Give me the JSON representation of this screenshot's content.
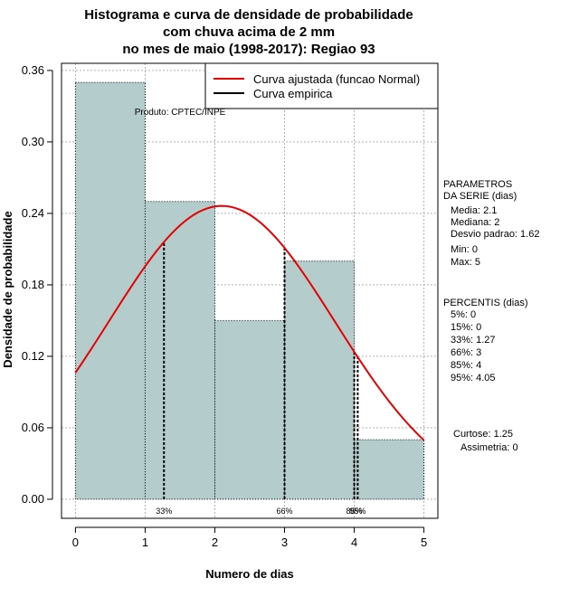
{
  "chart_data": {
    "type": "histogram",
    "title": [
      "Histograma e curva de densidade de probabilidade",
      "com chuva acima de 2 mm",
      "no mes de maio (1998-2017): Regiao 93"
    ],
    "xlabel": "Numero de dias",
    "ylabel": "Densidade de probabilidade",
    "xlim": [
      -0.2,
      5.2
    ],
    "ylim": [
      -0.016,
      0.366
    ],
    "x_ticks": [
      0,
      1,
      2,
      3,
      4,
      5
    ],
    "y_ticks": [
      0.0,
      0.06,
      0.12,
      0.18,
      0.24,
      0.3,
      0.36
    ],
    "y_tick_labels": [
      "0.00",
      "0.06",
      "0.12",
      "0.18",
      "0.24",
      "0.30",
      "0.36"
    ],
    "bins": [
      {
        "from": 0,
        "to": 1,
        "density": 0.35
      },
      {
        "from": 1,
        "to": 2,
        "density": 0.25
      },
      {
        "from": 2,
        "to": 3,
        "density": 0.15
      },
      {
        "from": 3,
        "to": 4,
        "density": 0.2
      },
      {
        "from": 4,
        "to": 5,
        "density": 0.05
      }
    ],
    "normal_curve": {
      "name": "Curva ajustada (funcao Normal)",
      "mean": 2.1,
      "sd": 1.62,
      "color": "#e60000",
      "x_range": [
        0,
        5
      ]
    },
    "empirical_curve": {
      "name": "Curva empirica",
      "color": "#000000"
    },
    "percentile_lines": [
      {
        "label": "33%",
        "x": 1.27
      },
      {
        "label": "66%",
        "x": 3
      },
      {
        "label": "85%",
        "x": 4
      },
      {
        "label": "95%",
        "x": 4.05
      }
    ],
    "grid": true,
    "legend_position": "top-right",
    "bar_color": "#b4cccc"
  },
  "watermark": "Produto: CPTEC/INPE",
  "params": {
    "header": [
      "PARAMETROS",
      "DA SERIE (dias)"
    ],
    "lines": [
      "Media: 2.1",
      "Mediana: 2",
      "Desvio padrao: 1.62",
      "Min: 0",
      "Max: 5"
    ]
  },
  "percentis": {
    "header": "PERCENTIS (dias)",
    "lines": [
      "5%: 0",
      "15%: 0",
      "33%: 1.27",
      "66%: 3",
      "85%: 4",
      "95%: 4.05"
    ]
  },
  "shape": {
    "lines": [
      "Curtose: 1.25",
      "Assimetria: 0"
    ]
  }
}
